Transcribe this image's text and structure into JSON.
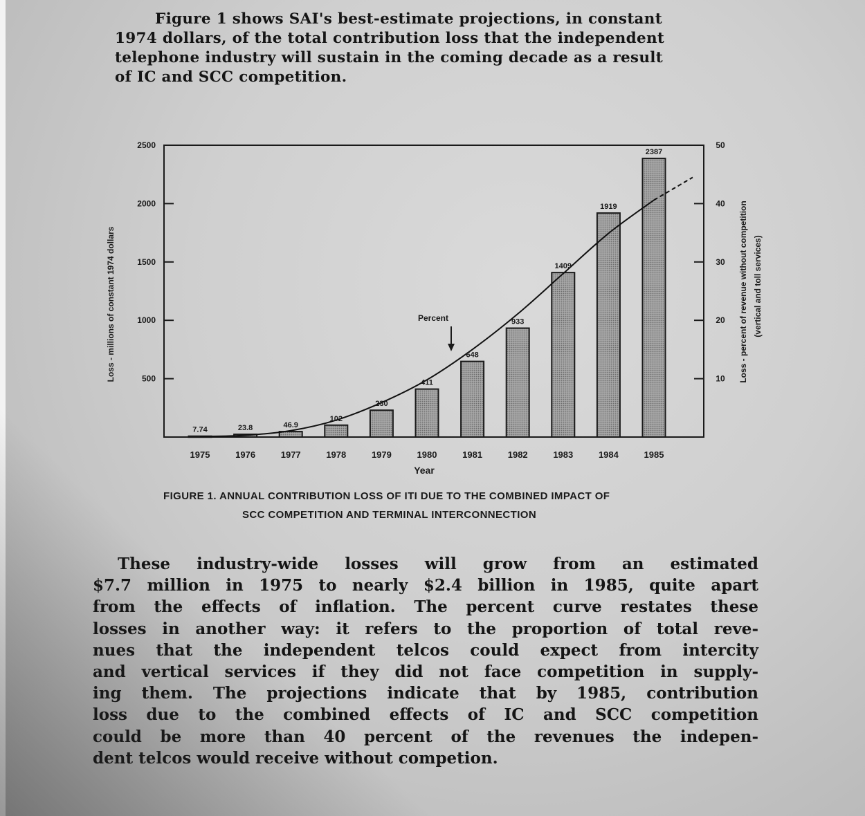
{
  "intro": {
    "lines": [
      "Figure 1 shows SAI's best-estimate projections, in constant",
      "1974 dollars, of the total contribution loss that the independent",
      "telephone industry will sustain in the coming decade as a result",
      "of IC and SCC competition."
    ]
  },
  "caption": {
    "line1": "FIGURE 1.  ANNUAL CONTRIBUTION LOSS OF ITI DUE TO THE COMBINED IMPACT OF",
    "line2": "SCC COMPETITION AND TERMINAL INTERCONNECTION"
  },
  "body": {
    "l1": "These industry-wide losses will grow from an estimated",
    "l2a": "$7.7 million in 1975 to nearly $2.4 ",
    "l2b": "billion",
    "l2c": " in 1985, quite apart",
    "l3": "from the effects of inflation. The percent curve restates these",
    "l4": "losses in another way: it refers to the proportion of total reve-",
    "l5": "nues that the independent telcos could expect from intercity",
    "l6": "and vertical services if they did not face competition in supply-",
    "l7": "ing them. The projections indicate that by 1985, contribution",
    "l8": "loss due to the combined effects of IC and SCC competition",
    "l9": "could be more than 40 percent of the revenues the indepen-",
    "l10": "dent telcos would receive without competion."
  },
  "chart_data": {
    "type": "bar",
    "title": "",
    "xlabel": "Year",
    "ylabel": "Loss - millions of constant 1974 dollars",
    "y2label_line1": "Loss - percent of revenue without competition",
    "y2label_line2": "(vertical and toll services)",
    "ylim": [
      0,
      2500
    ],
    "y2lim": [
      0,
      50
    ],
    "yticks": [
      500,
      1000,
      1500,
      2000,
      2500
    ],
    "y2ticks": [
      10,
      20,
      30,
      40,
      50
    ],
    "grid": false,
    "categories": [
      "1975",
      "1976",
      "1977",
      "1978",
      "1979",
      "1980",
      "1981",
      "1982",
      "1983",
      "1984",
      "1985"
    ],
    "values": [
      7.74,
      23.8,
      46.9,
      102,
      230,
      411,
      648,
      933,
      1409,
      1919,
      2387
    ],
    "value_labels": [
      "7.74",
      "23.8",
      "46.9",
      "102",
      "230",
      "411",
      "648",
      "933",
      "1409",
      "1919",
      "2387"
    ],
    "percent_curve": {
      "label": "Percent",
      "axis": "right",
      "x": [
        "1975",
        "1976",
        "1977",
        "1978",
        "1979",
        "1980",
        "1981",
        "1982",
        "1983",
        "1984",
        "1985"
      ],
      "values": [
        0.1,
        0.3,
        1.1,
        2.9,
        5.9,
        9.8,
        15.0,
        21.1,
        28.0,
        34.9,
        40.6
      ]
    },
    "colors": {
      "bar_fill": "#9a9a9a",
      "bar_stroke": "#1a1a1a",
      "line": "#111111",
      "text": "#1a1a1a"
    }
  }
}
